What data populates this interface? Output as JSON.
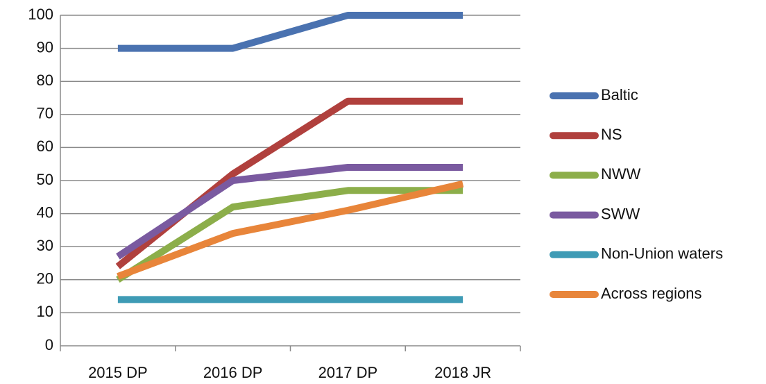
{
  "chart_data": {
    "type": "line",
    "categories": [
      "2015 DP",
      "2016 DP",
      "2017 DP",
      "2018 JR"
    ],
    "series": [
      {
        "name": "Baltic",
        "color": "#4a72b0",
        "values": [
          90,
          90,
          100,
          100
        ]
      },
      {
        "name": "NS",
        "color": "#b0403d",
        "values": [
          24,
          52,
          74,
          74
        ]
      },
      {
        "name": "NWW",
        "color": "#8cae4a",
        "values": [
          20,
          42,
          47,
          47
        ]
      },
      {
        "name": "SWW",
        "color": "#7a5aa0",
        "values": [
          27,
          50,
          54,
          54
        ]
      },
      {
        "name": "Non-Union waters",
        "color": "#3e9bb5",
        "values": [
          14,
          14,
          14,
          14
        ]
      },
      {
        "name": "Across regions",
        "color": "#e8853a",
        "values": [
          21,
          34,
          41,
          49
        ]
      }
    ],
    "ylim": [
      0,
      100
    ],
    "yticks": [
      0,
      10,
      20,
      30,
      40,
      50,
      60,
      70,
      80,
      90,
      100
    ],
    "grid": true,
    "legend": "right"
  }
}
